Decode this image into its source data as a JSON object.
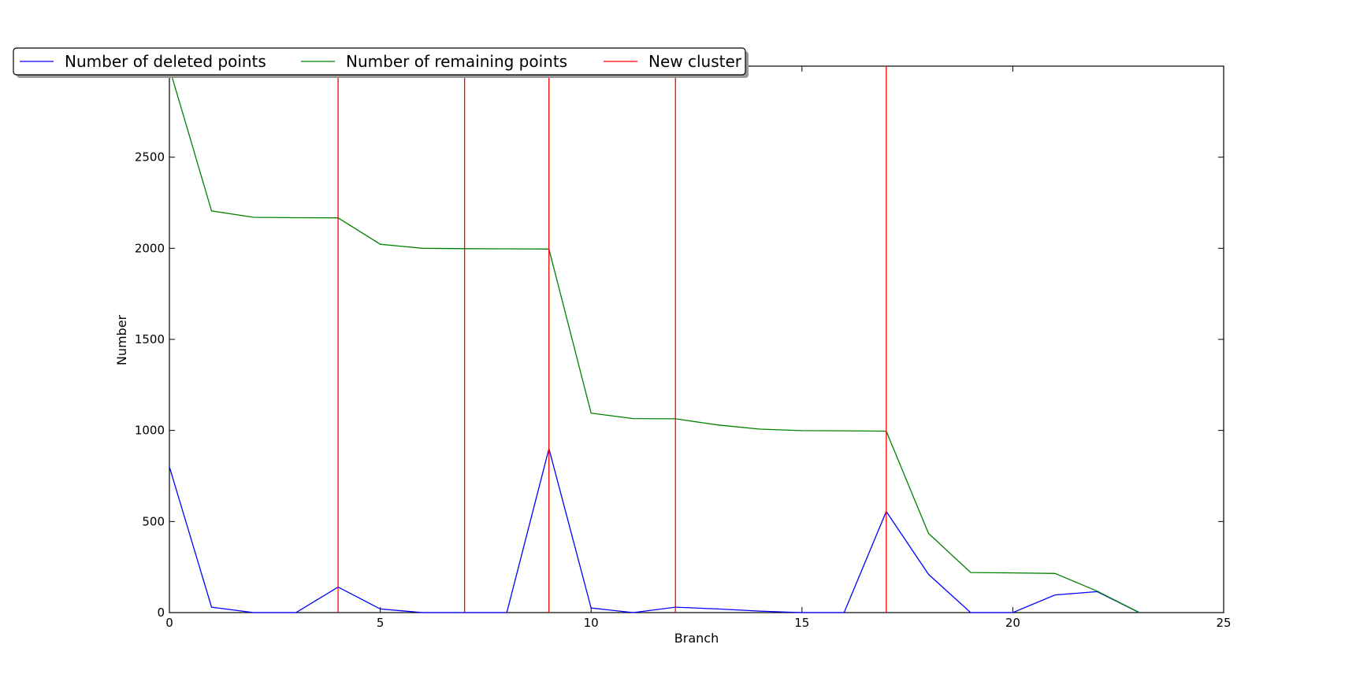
{
  "chart_data": {
    "type": "line",
    "xlabel": "Branch",
    "ylabel": "Number",
    "xlim": [
      0,
      25
    ],
    "ylim": [
      0,
      3000
    ],
    "x_ticks": [
      0,
      5,
      10,
      15,
      20,
      25
    ],
    "y_ticks": [
      0,
      500,
      1000,
      1500,
      2000,
      2500
    ],
    "legend_position": "top-left, above plot",
    "series": [
      {
        "name": "Number of deleted points",
        "color": "#0000ff",
        "x": [
          0,
          1,
          2,
          3,
          4,
          5,
          6,
          7,
          8,
          9,
          10,
          11,
          12,
          13,
          14,
          15,
          16,
          17,
          18,
          19,
          20,
          21,
          22,
          23
        ],
        "y": [
          800,
          30,
          0,
          0,
          140,
          20,
          0,
          0,
          0,
          900,
          25,
          0,
          30,
          20,
          8,
          0,
          0,
          555,
          210,
          0,
          0,
          97,
          115,
          0
        ]
      },
      {
        "name": "Number of remaining points",
        "color": "#008000",
        "x": [
          0,
          1,
          2,
          3,
          4,
          5,
          6,
          7,
          8,
          9,
          10,
          11,
          12,
          13,
          14,
          15,
          16,
          17,
          18,
          19,
          20,
          21,
          22,
          23
        ],
        "y": [
          2990,
          2205,
          2170,
          2168,
          2167,
          2022,
          2000,
          1998,
          1997,
          1996,
          1095,
          1065,
          1064,
          1030,
          1007,
          999,
          998,
          996,
          435,
          220,
          218,
          215,
          118,
          0
        ]
      },
      {
        "name": "New cluster",
        "color": "#ff0000",
        "type": "vline",
        "x": [
          4,
          7,
          9,
          12,
          17
        ]
      }
    ]
  }
}
